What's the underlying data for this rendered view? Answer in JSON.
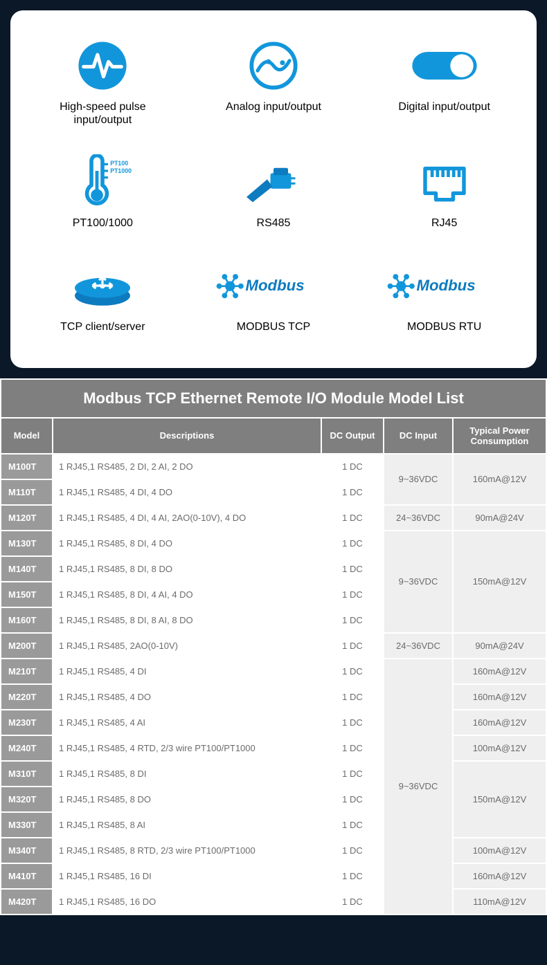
{
  "features": {
    "items": [
      {
        "label": "High-speed pulse\ninput/output",
        "icon": "pulse"
      },
      {
        "label": "Analog input/output",
        "icon": "analog"
      },
      {
        "label": "Digital input/output",
        "icon": "toggle"
      },
      {
        "label": "PT100/1000",
        "icon": "thermo",
        "badge1": "PT100",
        "badge2": "PT1000"
      },
      {
        "label": "RS485",
        "icon": "plug"
      },
      {
        "label": "RJ45",
        "icon": "rj45"
      },
      {
        "label": "TCP client/server",
        "icon": "router"
      },
      {
        "label": "MODBUS TCP",
        "icon": "modbus",
        "brand": "Modbus"
      },
      {
        "label": "MODBUS RTU",
        "icon": "modbus",
        "brand": "Modbus"
      }
    ]
  },
  "colors": {
    "brand_blue": "#1296db",
    "brand_blue_dark": "#0d7bc0",
    "header_grey": "#7f7f7f",
    "model_grey": "#9a9a9a",
    "merge_bg": "#efefef",
    "text_grey": "#6b6b6b"
  },
  "table": {
    "title": "Modbus TCP Ethernet Remote I/O Module Model List",
    "columns": [
      "Model",
      "Descriptions",
      "DC Output",
      "DC Input",
      "Typical Power Consumption"
    ],
    "groups": [
      {
        "input": "9~36VDC",
        "power": "160mA@12V",
        "rows": [
          {
            "model": "M100T",
            "desc": "1 RJ45,1 RS485, 2 DI, 2 AI, 2 DO",
            "out": "1 DC"
          },
          {
            "model": "M110T",
            "desc": "1 RJ45,1 RS485, 4 DI, 4 DO",
            "out": "1 DC"
          }
        ]
      },
      {
        "input": "24~36VDC",
        "power": "90mA@24V",
        "rows": [
          {
            "model": "M120T",
            "desc": "1 RJ45,1 RS485, 4 DI, 4 AI, 2AO(0-10V), 4 DO",
            "out": "1 DC"
          }
        ]
      },
      {
        "input": "9~36VDC",
        "power": "150mA@12V",
        "rows": [
          {
            "model": "M130T",
            "desc": "1 RJ45,1 RS485, 8 DI, 4 DO",
            "out": "1 DC"
          },
          {
            "model": "M140T",
            "desc": "1 RJ45,1 RS485, 8 DI, 8 DO",
            "out": "1 DC"
          },
          {
            "model": "M150T",
            "desc": "1 RJ45,1 RS485, 8 DI, 4 AI, 4 DO",
            "out": "1 DC"
          },
          {
            "model": "M160T",
            "desc": "1 RJ45,1 RS485, 8 DI, 8 AI, 8 DO",
            "out": "1 DC"
          }
        ]
      },
      {
        "input": "24~36VDC",
        "power": "90mA@24V",
        "rows": [
          {
            "model": "M200T",
            "desc": "1 RJ45,1 RS485, 2AO(0-10V)",
            "out": "1 DC"
          }
        ]
      },
      {
        "input": "9~36VDC",
        "rows": [
          {
            "model": "M210T",
            "desc": "1 RJ45,1 RS485, 4 DI",
            "out": "1 DC",
            "power": "160mA@12V"
          },
          {
            "model": "M220T",
            "desc": "1 RJ45,1 RS485, 4 DO",
            "out": "1 DC",
            "power": "160mA@12V"
          },
          {
            "model": "M230T",
            "desc": "1 RJ45,1 RS485, 4 AI",
            "out": "1 DC",
            "power": "160mA@12V"
          },
          {
            "model": "M240T",
            "desc": "1 RJ45,1 RS485, 4 RTD, 2/3 wire PT100/PT1000",
            "out": "1 DC",
            "power": "100mA@12V"
          },
          {
            "model": "M310T",
            "desc": "1 RJ45,1 RS485, 8 DI",
            "out": "1 DC",
            "power_group": "150mA@12V",
            "power_span": 3
          },
          {
            "model": "M320T",
            "desc": "1 RJ45,1 RS485, 8 DO",
            "out": "1 DC"
          },
          {
            "model": "M330T",
            "desc": "1 RJ45,1 RS485, 8 AI",
            "out": "1 DC"
          },
          {
            "model": "M340T",
            "desc": "1 RJ45,1 RS485, 8 RTD, 2/3 wire PT100/PT1000",
            "out": "1 DC",
            "power": "100mA@12V"
          },
          {
            "model": "M410T",
            "desc": "1 RJ45,1 RS485, 16 DI",
            "out": "1 DC",
            "power": "160mA@12V"
          },
          {
            "model": "M420T",
            "desc": "1 RJ45,1 RS485, 16 DO",
            "out": "1 DC",
            "power": "110mA@12V"
          }
        ]
      }
    ]
  }
}
